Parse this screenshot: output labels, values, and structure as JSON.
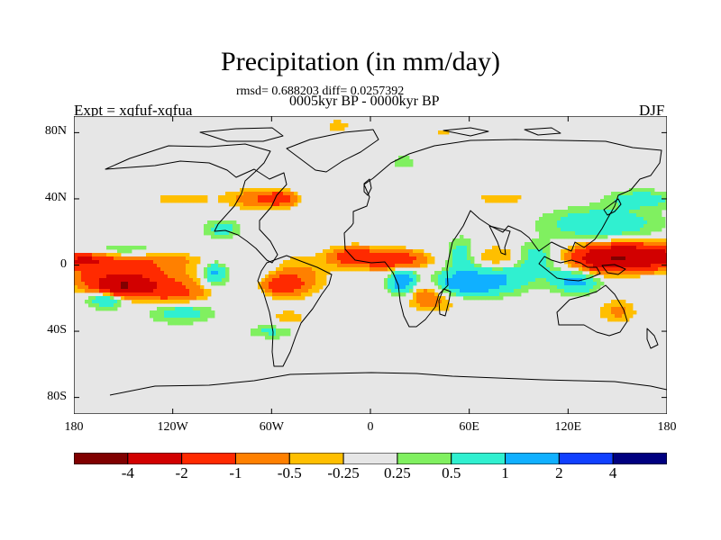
{
  "chart_data": {
    "type": "heatmap",
    "title": "Precipitation (in mm/day)",
    "stats_label": "rmsd= 0.688203 diff= 0.0257392",
    "rmsd": 0.688203,
    "diff": 0.0257392,
    "period_label": "0005kyr BP - 0000kyr BP",
    "experiment_label": "Expt = xqfuf-xqfua",
    "season_label": "DJF",
    "xlabel": "",
    "ylabel": "",
    "xlim": [
      -180,
      180
    ],
    "ylim": [
      -90,
      90
    ],
    "x_ticks": [
      {
        "value": -180,
        "label": "180"
      },
      {
        "value": -120,
        "label": "120W"
      },
      {
        "value": -60,
        "label": "60W"
      },
      {
        "value": 0,
        "label": "0"
      },
      {
        "value": 60,
        "label": "60E"
      },
      {
        "value": 120,
        "label": "120E"
      },
      {
        "value": 180,
        "label": "180"
      }
    ],
    "y_ticks": [
      {
        "value": 80,
        "label": "80N"
      },
      {
        "value": 40,
        "label": "40N"
      },
      {
        "value": 0,
        "label": "0"
      },
      {
        "value": -40,
        "label": "40S"
      },
      {
        "value": -80,
        "label": "80S"
      }
    ],
    "colorbar": {
      "levels": [
        -4,
        -2,
        -1,
        -0.5,
        -0.25,
        0.25,
        0.5,
        1,
        2,
        4
      ],
      "level_labels": [
        "-4",
        "-2",
        "-1",
        "-0.5",
        "-0.25",
        "0.25",
        "0.5",
        "1",
        "2",
        "4"
      ],
      "colors": [
        "#800000",
        "#d20000",
        "#ff2a00",
        "#ff8000",
        "#ffbf00",
        "#e6e6e6",
        "#80f060",
        "#30f0d0",
        "#10b0ff",
        "#1040ff",
        "#000080"
      ]
    },
    "field_anomalies": [
      {
        "lon": -150,
        "lat": -5,
        "value": -1.5,
        "sx": 25,
        "sy": 6
      },
      {
        "lon": -150,
        "lat": -13,
        "value": -3.5,
        "sx": 12,
        "sy": 4
      },
      {
        "lon": -120,
        "lat": -17,
        "value": -1.3,
        "sx": 14,
        "sy": 5
      },
      {
        "lon": -175,
        "lat": 3,
        "value": -1.8,
        "sx": 10,
        "sy": 3
      },
      {
        "lon": -140,
        "lat": 4,
        "value": -0.6,
        "sx": 30,
        "sy": 3
      },
      {
        "lon": -150,
        "lat": 8,
        "value": 0.6,
        "sx": 22,
        "sy": 3
      },
      {
        "lon": -115,
        "lat": -28,
        "value": 0.8,
        "sx": 14,
        "sy": 5
      },
      {
        "lon": -160,
        "lat": -20,
        "value": 1.2,
        "sx": 8,
        "sy": 4
      },
      {
        "lon": -95,
        "lat": -5,
        "value": 1.2,
        "sx": 5,
        "sy": 5
      },
      {
        "lon": -65,
        "lat": -10,
        "value": 0.7,
        "sx": 12,
        "sy": 8
      },
      {
        "lon": -55,
        "lat": -12,
        "value": -1.8,
        "sx": 10,
        "sy": 5
      },
      {
        "lon": -45,
        "lat": -5,
        "value": -0.6,
        "sx": 14,
        "sy": 8
      },
      {
        "lon": -50,
        "lat": -32,
        "value": -0.4,
        "sx": 8,
        "sy": 4
      },
      {
        "lon": -60,
        "lat": -40,
        "value": 0.6,
        "sx": 10,
        "sy": 3
      },
      {
        "lon": -70,
        "lat": 40,
        "value": -0.8,
        "sx": 12,
        "sy": 4
      },
      {
        "lon": -55,
        "lat": 40,
        "value": -1.4,
        "sx": 7,
        "sy": 3
      },
      {
        "lon": -90,
        "lat": 22,
        "value": 0.7,
        "sx": 8,
        "sy": 4
      },
      {
        "lon": -115,
        "lat": 40,
        "value": -0.4,
        "sx": 15,
        "sy": 3
      },
      {
        "lon": -10,
        "lat": 5,
        "value": -1.6,
        "sx": 10,
        "sy": 4
      },
      {
        "lon": 15,
        "lat": 3,
        "value": -1.8,
        "sx": 12,
        "sy": 4
      },
      {
        "lon": 20,
        "lat": -10,
        "value": 1.6,
        "sx": 6,
        "sy": 6
      },
      {
        "lon": 30,
        "lat": -15,
        "value": -0.8,
        "sx": 8,
        "sy": 6
      },
      {
        "lon": 40,
        "lat": -20,
        "value": -0.6,
        "sx": 10,
        "sy": 6
      },
      {
        "lon": 60,
        "lat": -12,
        "value": 1.5,
        "sx": 20,
        "sy": 5
      },
      {
        "lon": 80,
        "lat": -5,
        "value": 0.6,
        "sx": 20,
        "sy": 4
      },
      {
        "lon": 55,
        "lat": 5,
        "value": 0.8,
        "sx": 6,
        "sy": 8
      },
      {
        "lon": 80,
        "lat": 5,
        "value": -0.6,
        "sx": 12,
        "sy": 5
      },
      {
        "lon": 100,
        "lat": 5,
        "value": 0.9,
        "sx": 10,
        "sy": 6
      },
      {
        "lon": 80,
        "lat": 40,
        "value": -0.3,
        "sx": 25,
        "sy": 3
      },
      {
        "lon": 160,
        "lat": 5,
        "value": -3.8,
        "sx": 22,
        "sy": 5
      },
      {
        "lon": 140,
        "lat": 3,
        "value": -1.2,
        "sx": 10,
        "sy": 6
      },
      {
        "lon": 125,
        "lat": -10,
        "value": 1.2,
        "sx": 10,
        "sy": 5
      },
      {
        "lon": 150,
        "lat": -28,
        "value": -0.6,
        "sx": 8,
        "sy": 5
      },
      {
        "lon": 140,
        "lat": 25,
        "value": 0.9,
        "sx": 25,
        "sy": 7
      },
      {
        "lon": 165,
        "lat": 40,
        "value": 0.7,
        "sx": 15,
        "sy": 4
      },
      {
        "lon": -20,
        "lat": 84,
        "value": -0.4,
        "sx": 6,
        "sy": 3
      },
      {
        "lon": 45,
        "lat": 80,
        "value": -0.3,
        "sx": 5,
        "sy": 3
      },
      {
        "lon": 20,
        "lat": 62,
        "value": 0.5,
        "sx": 5,
        "sy": 3
      }
    ]
  }
}
